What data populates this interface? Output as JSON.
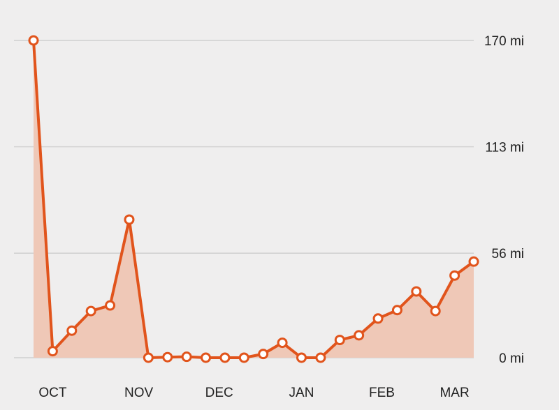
{
  "chart_data": {
    "type": "area",
    "title": "",
    "xlabel": "",
    "ylabel": "",
    "y_unit": "mi",
    "ylim": [
      0,
      170
    ],
    "grid": true,
    "legend": "none",
    "yticks": [
      {
        "value": 0,
        "label": "0 mi"
      },
      {
        "value": 56,
        "label": "56 mi"
      },
      {
        "value": 113,
        "label": "113 mi"
      },
      {
        "value": 170,
        "label": "170 mi"
      }
    ],
    "xticks": [
      {
        "index": 1,
        "label": "OCT"
      },
      {
        "index": 5.5,
        "label": "NOV"
      },
      {
        "index": 9.7,
        "label": "DEC"
      },
      {
        "index": 14,
        "label": "JAN"
      },
      {
        "index": 18.2,
        "label": "FEB"
      },
      {
        "index": 22,
        "label": "MAR"
      }
    ],
    "series": [
      {
        "values": [
          170,
          3.5,
          14.5,
          25,
          28,
          74,
          0,
          0.3,
          0.5,
          0,
          0,
          0,
          2,
          8,
          0,
          0,
          9.5,
          12,
          21,
          25.5,
          35.5,
          25,
          44,
          51.5
        ]
      }
    ],
    "colors": {
      "line": "#e1541c",
      "area": "#efc8b7",
      "marker_fill": "#ffffff",
      "grid": "#cfcfcf",
      "text": "#222222"
    }
  }
}
